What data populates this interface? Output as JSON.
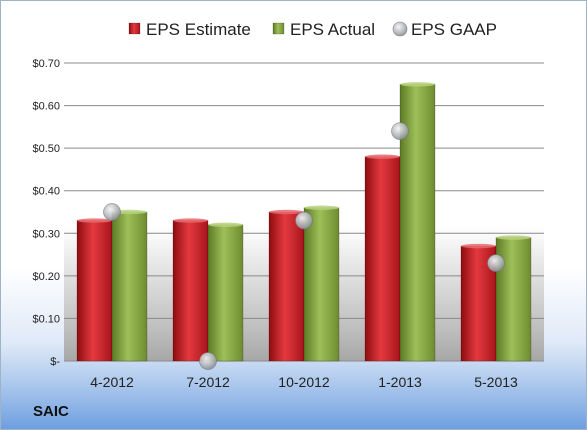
{
  "chart_data": {
    "type": "bar",
    "title": "",
    "company": "SAIC",
    "categories": [
      "4-2012",
      "7-2012",
      "10-2012",
      "1-2013",
      "5-2013"
    ],
    "series": [
      {
        "name": "EPS Estimate",
        "kind": "bar",
        "color": "#c0161c",
        "values": [
          0.33,
          0.33,
          0.35,
          0.48,
          0.27
        ]
      },
      {
        "name": "EPS Actual",
        "kind": "bar",
        "color": "#7f9f3c",
        "values": [
          0.35,
          0.32,
          0.36,
          0.65,
          0.29
        ]
      },
      {
        "name": "EPS GAAP",
        "kind": "marker",
        "color": "#b9bcc0",
        "values": [
          0.35,
          0.0,
          0.33,
          0.54,
          0.23
        ]
      }
    ],
    "y_ticks": [
      {
        "value": 0,
        "label": "$-"
      },
      {
        "value": 0.1,
        "label": "$0.10"
      },
      {
        "value": 0.2,
        "label": "$0.20"
      },
      {
        "value": 0.3,
        "label": "$0.30"
      },
      {
        "value": 0.4,
        "label": "$0.40"
      },
      {
        "value": 0.5,
        "label": "$0.50"
      },
      {
        "value": 0.6,
        "label": "$0.60"
      },
      {
        "value": 0.7,
        "label": "$0.70"
      }
    ],
    "ylim": [
      0,
      0.7
    ],
    "grid": true,
    "legend_position": "top"
  }
}
